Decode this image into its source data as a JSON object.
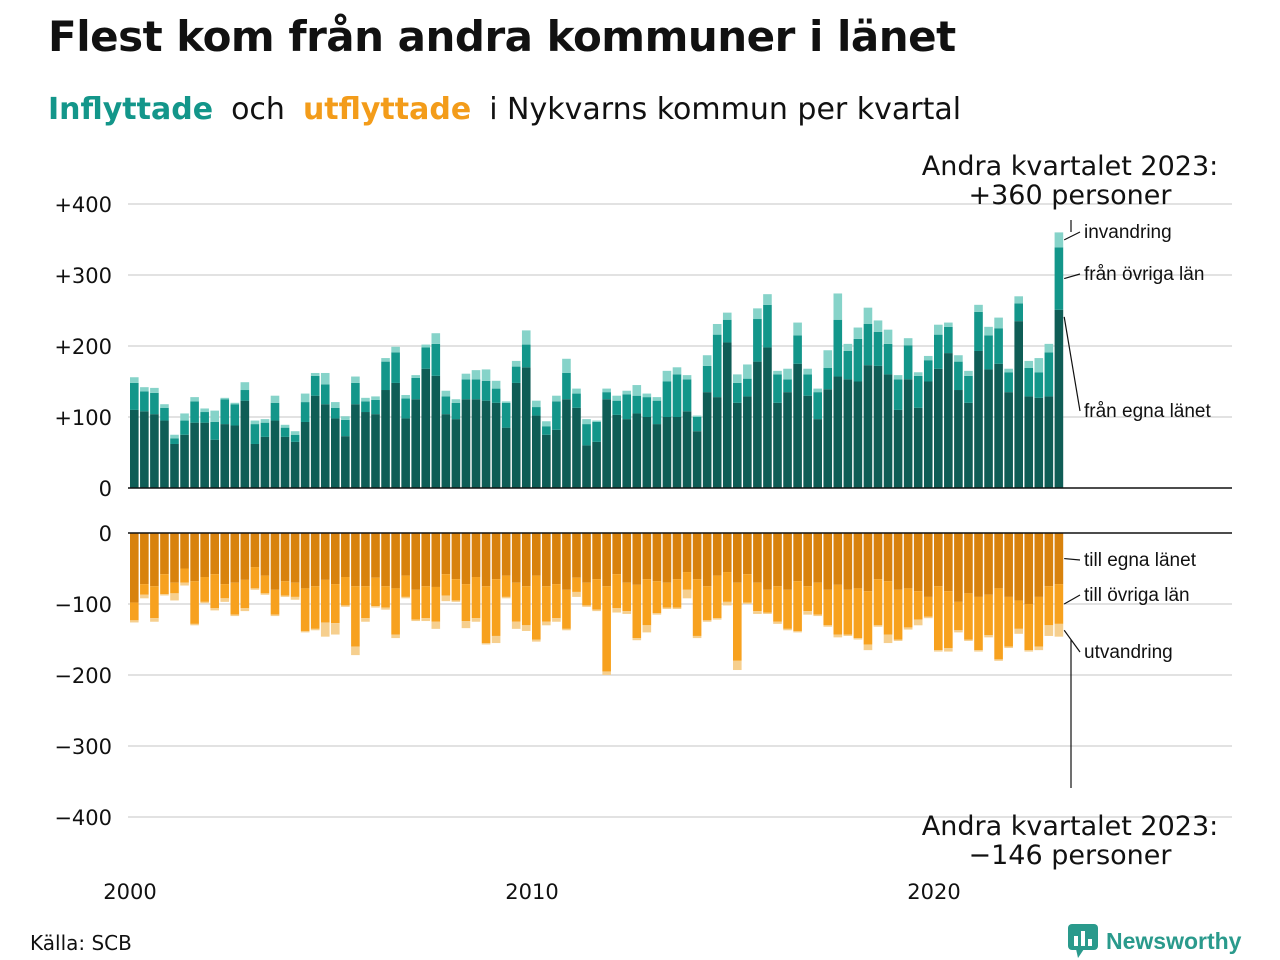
{
  "title": "Flest kom från andra kommuner i länet",
  "subtitle": {
    "in": "Inflyttade",
    "and": "och",
    "out": "utflyttade",
    "rest": "i Nykvarns kommun per kvartal"
  },
  "annotation_top": {
    "line1": "Andra kvartalet 2023:",
    "line2": "+360 personer"
  },
  "annotation_bottom": {
    "line1": "Andra kvartalet 2023:",
    "line2": "−146 personer"
  },
  "source": "Källa: SCB",
  "logo": {
    "text": "Newsworthy",
    "icon": "bar-chart-speech-bubble-icon"
  },
  "colors": {
    "in_own": "#0f5d56",
    "in_other": "#13968a",
    "in_immig": "#86d3c9",
    "out_own": "#d8820d",
    "out_other": "#f7a11e",
    "out_emig": "#f6cf8e",
    "grid": "#e2e2e2",
    "axis": "#111111"
  },
  "chart_data": {
    "type": "bar",
    "stacked": true,
    "x_start": "2000 Q1",
    "x_ticks": [
      "2000",
      "2010",
      "2020"
    ],
    "y_ticks_top": [
      "+400",
      "+300",
      "+200",
      "+100",
      "0"
    ],
    "y_ticks_bottom": [
      "0",
      "−100",
      "−200",
      "−300",
      "−400"
    ],
    "ylim_top": [
      0,
      400
    ],
    "ylim_bottom": [
      -400,
      0
    ],
    "grid": true,
    "labels_in": [
      "invandring",
      "från övriga län",
      "från egna länet"
    ],
    "labels_out": [
      "till egna länet",
      "till övriga län",
      "utvandring"
    ],
    "inflow_series": [
      {
        "name": "från egna länet",
        "values": [
          110,
          108,
          104,
          95,
          62,
          75,
          92,
          92,
          68,
          90,
          88,
          123,
          62,
          72,
          95,
          72,
          65,
          93,
          130,
          118,
          98,
          73,
          118,
          107,
          104,
          138,
          148,
          98,
          125,
          168,
          158,
          104,
          97,
          125,
          125,
          123,
          120,
          85,
          148,
          170,
          102,
          75,
          82,
          125,
          113,
          60,
          65,
          125,
          103,
          97,
          105,
          100,
          90,
          100,
          100,
          108,
          80,
          135,
          128,
          205,
          120,
          129,
          178,
          198,
          120,
          135,
          175,
          130,
          97,
          139,
          157,
          153,
          150,
          173,
          172,
          160,
          110,
          153,
          113,
          150,
          168,
          190,
          138,
          120,
          193,
          167,
          175,
          135,
          235,
          129,
          127,
          129,
          251
        ]
      },
      {
        "name": "från övriga län",
        "values": [
          38,
          28,
          30,
          18,
          8,
          20,
          30,
          15,
          25,
          35,
          30,
          15,
          28,
          20,
          25,
          13,
          10,
          28,
          28,
          28,
          15,
          23,
          30,
          15,
          20,
          40,
          43,
          28,
          30,
          30,
          45,
          25,
          23,
          28,
          28,
          28,
          20,
          35,
          23,
          32,
          12,
          12,
          40,
          37,
          20,
          30,
          28,
          10,
          20,
          35,
          25,
          28,
          33,
          50,
          60,
          45,
          20,
          37,
          88,
          32,
          28,
          25,
          60,
          60,
          40,
          18,
          40,
          30,
          38,
          30,
          80,
          40,
          60,
          58,
          48,
          43,
          43,
          48,
          45,
          30,
          48,
          37,
          40,
          38,
          55,
          48,
          50,
          28,
          25,
          40,
          36,
          62,
          88
        ]
      },
      {
        "name": "invandring",
        "values": [
          8,
          6,
          7,
          5,
          5,
          10,
          6,
          5,
          16,
          2,
          2,
          11,
          5,
          5,
          10,
          4,
          5,
          12,
          4,
          16,
          8,
          5,
          9,
          5,
          5,
          5,
          8,
          5,
          4,
          4,
          15,
          8,
          5,
          8,
          13,
          16,
          11,
          2,
          8,
          20,
          9,
          7,
          8,
          20,
          7,
          7,
          2,
          5,
          7,
          5,
          15,
          5,
          5,
          15,
          10,
          6,
          2,
          15,
          15,
          10,
          12,
          20,
          15,
          15,
          5,
          15,
          18,
          8,
          5,
          25,
          37,
          10,
          16,
          23,
          16,
          20,
          6,
          10,
          5,
          6,
          14,
          6,
          9,
          7,
          10,
          12,
          15,
          5,
          10,
          10,
          20,
          12,
          21
        ]
      }
    ],
    "outflow_series": [
      {
        "name": "till egna länet",
        "values": [
          -98,
          -72,
          -75,
          -58,
          -70,
          -50,
          -68,
          -62,
          -58,
          -72,
          -70,
          -66,
          -48,
          -60,
          -80,
          -68,
          -70,
          -78,
          -75,
          -66,
          -72,
          -62,
          -75,
          -75,
          -63,
          -75,
          -78,
          -60,
          -80,
          -75,
          -76,
          -58,
          -65,
          -72,
          -62,
          -75,
          -65,
          -60,
          -70,
          -75,
          -60,
          -75,
          -72,
          -80,
          -63,
          -70,
          -65,
          -75,
          -58,
          -70,
          -73,
          -65,
          -68,
          -70,
          -65,
          -55,
          -65,
          -75,
          -60,
          -55,
          -70,
          -58,
          -70,
          -80,
          -75,
          -80,
          -68,
          -75,
          -70,
          -80,
          -73,
          -80,
          -78,
          -82,
          -65,
          -68,
          -80,
          -78,
          -82,
          -90,
          -75,
          -82,
          -97,
          -85,
          -90,
          -87,
          -78,
          -90,
          -95,
          -100,
          -90,
          -75,
          -72
        ]
      },
      {
        "name": "till övriga län",
        "values": [
          -25,
          -15,
          -45,
          -28,
          -15,
          -20,
          -60,
          -35,
          -48,
          -20,
          -45,
          -40,
          -30,
          -25,
          -35,
          -20,
          -20,
          -60,
          -60,
          -60,
          -55,
          -40,
          -85,
          -45,
          -40,
          -30,
          -65,
          -30,
          -42,
          -45,
          -49,
          -30,
          -30,
          -52,
          -58,
          -80,
          -80,
          -30,
          -55,
          -55,
          -90,
          -50,
          -48,
          -55,
          -20,
          -32,
          -43,
          -120,
          -48,
          -40,
          -75,
          -65,
          -45,
          -35,
          -40,
          -25,
          -80,
          -48,
          -60,
          -42,
          -110,
          -40,
          -40,
          -32,
          -50,
          -55,
          -70,
          -35,
          -45,
          -50,
          -70,
          -63,
          -70,
          -75,
          -65,
          -75,
          -70,
          -55,
          -40,
          -28,
          -90,
          -80,
          -40,
          -65,
          -75,
          -57,
          -100,
          -70,
          -40,
          -65,
          -70,
          -55,
          -56
        ]
      },
      {
        "name": "utvandring",
        "values": [
          -3,
          -5,
          -5,
          -2,
          -10,
          -4,
          -2,
          -2,
          -3,
          -5,
          -2,
          -4,
          -2,
          -2,
          -2,
          -2,
          -4,
          -2,
          -2,
          -20,
          -16,
          -2,
          -12,
          -5,
          -2,
          -3,
          -5,
          -2,
          -2,
          -4,
          -10,
          -8,
          -2,
          -10,
          -5,
          -2,
          -10,
          -2,
          -10,
          -8,
          -3,
          -5,
          -5,
          -2,
          -7,
          -2,
          -2,
          -5,
          -6,
          -4,
          -3,
          -10,
          -2,
          -2,
          -2,
          -12,
          -3,
          -2,
          -2,
          -5,
          -13,
          -2,
          -4,
          -2,
          -3,
          -2,
          -2,
          -5,
          -2,
          -2,
          -4,
          -2,
          -2,
          -8,
          -2,
          -12,
          -2,
          -3,
          -8,
          -2,
          -2,
          -5,
          -3,
          -2,
          -2,
          -3,
          -2,
          -2,
          -7,
          -2,
          -5,
          -15,
          -18
        ]
      }
    ]
  }
}
